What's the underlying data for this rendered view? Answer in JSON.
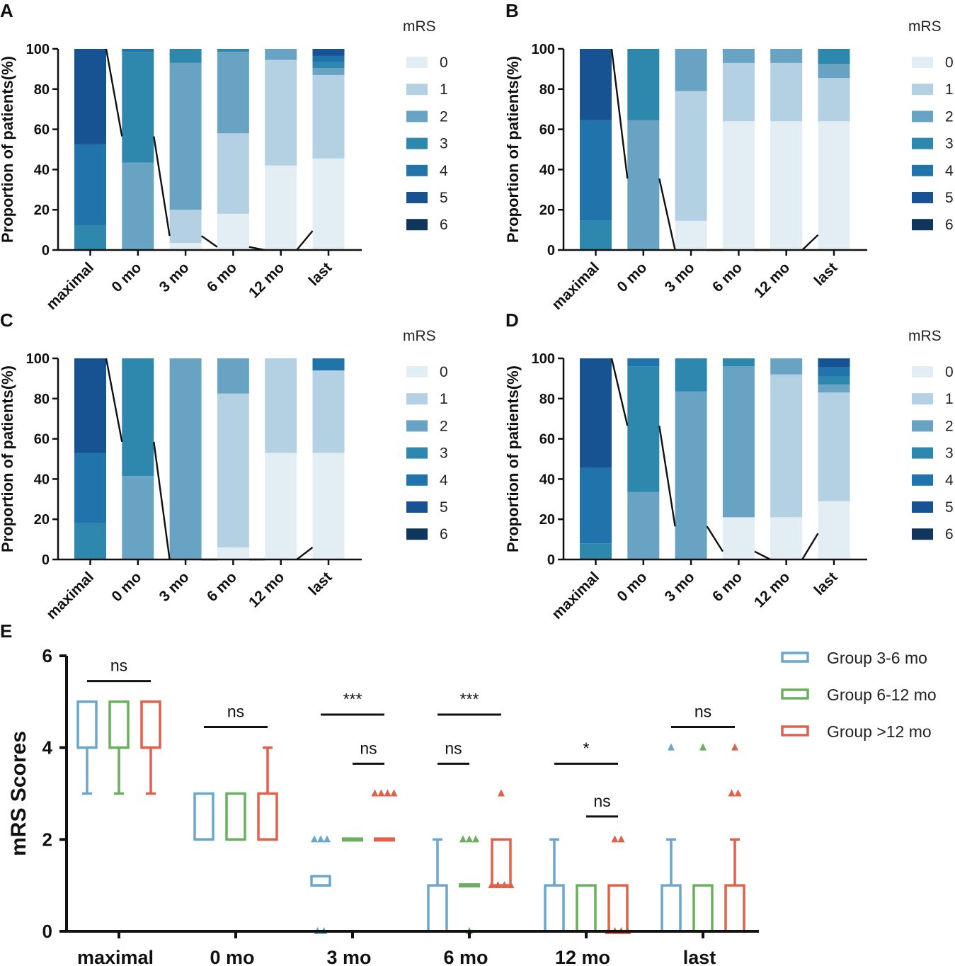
{
  "chart_data": {
    "type": "stacked-bar + box",
    "legend_title": "mRS",
    "legend_levels": [
      "0",
      "1",
      "2",
      "3",
      "4",
      "5",
      "6"
    ],
    "level_colors": [
      "#e3edf4",
      "#b3d1e3",
      "#69a3c3",
      "#2e88ad",
      "#2074ab",
      "#175293",
      "#11365e"
    ],
    "stacked_panels": [
      {
        "label": "A",
        "title": "",
        "ylabel": "Proportion of patients(%)",
        "ylim": [
          0,
          100
        ],
        "yticks": [
          "0",
          "20",
          "40",
          "60",
          "80",
          "100"
        ],
        "categories": [
          "maximal",
          "0 mo",
          "3 mo",
          "6 mo",
          "12 mo",
          "last"
        ],
        "stacks": [
          [
            0,
            0,
            0,
            12.5,
            40,
            47.5,
            0
          ],
          [
            0,
            0,
            43.5,
            55,
            1.5,
            0,
            0
          ],
          [
            3.5,
            16.5,
            73,
            7,
            0,
            0,
            0
          ],
          [
            18,
            40,
            40.5,
            1.5,
            0,
            0,
            0
          ],
          [
            42,
            52.5,
            5.5,
            0,
            0,
            0,
            0
          ],
          [
            45.5,
            41.5,
            3.5,
            3,
            3,
            3.5,
            0
          ]
        ]
      },
      {
        "label": "B",
        "title": "",
        "ylabel": "Proportion of patients(%)",
        "ylim": [
          0,
          100
        ],
        "yticks": [
          "0",
          "20",
          "40",
          "60",
          "80",
          "100"
        ],
        "categories": [
          "maximal",
          "0 mo",
          "3 mo",
          "6 mo",
          "12 mo",
          "last"
        ],
        "stacks": [
          [
            0,
            0,
            0,
            14.5,
            50,
            35.5,
            0
          ],
          [
            0,
            0,
            64.5,
            35.5,
            0,
            0,
            0
          ],
          [
            14.5,
            64.5,
            21,
            0,
            0,
            0,
            0
          ],
          [
            64,
            29,
            7,
            0,
            0,
            0,
            0
          ],
          [
            64,
            29,
            7,
            0,
            0,
            0,
            0
          ],
          [
            64,
            21.5,
            7,
            7.5,
            0,
            0,
            0
          ]
        ]
      },
      {
        "label": "C",
        "title": "",
        "ylabel": "Proportion of patients(%)",
        "ylim": [
          0,
          100
        ],
        "yticks": [
          "0",
          "20",
          "40",
          "60",
          "80",
          "100"
        ],
        "categories": [
          "maximal",
          "0 mo",
          "3 mo",
          "6 mo",
          "12 mo",
          "last"
        ],
        "stacks": [
          [
            0,
            0,
            0,
            18,
            35,
            47,
            0
          ],
          [
            0,
            0,
            41.5,
            58.5,
            0,
            0,
            0
          ],
          [
            0,
            0,
            100,
            0,
            0,
            0,
            0
          ],
          [
            6,
            76.5,
            17.5,
            0,
            0,
            0,
            0
          ],
          [
            53,
            47,
            0,
            0,
            0,
            0,
            0
          ],
          [
            53,
            41,
            0,
            0,
            6,
            0,
            0
          ]
        ]
      },
      {
        "label": "D",
        "title": "",
        "ylabel": "Proportion of patients(%)",
        "ylim": [
          0,
          100
        ],
        "yticks": [
          "0",
          "20",
          "40",
          "60",
          "80",
          "100"
        ],
        "categories": [
          "maximal",
          "0 mo",
          "3 mo",
          "6 mo",
          "12 mo",
          "last"
        ],
        "stacks": [
          [
            0,
            0,
            0,
            8,
            37.5,
            54.5,
            0
          ],
          [
            0,
            0,
            33.5,
            62.5,
            4,
            0,
            0
          ],
          [
            0,
            0,
            83.5,
            16.5,
            0,
            0,
            0
          ],
          [
            21,
            0,
            75,
            4,
            0,
            0,
            0
          ],
          [
            21,
            71,
            8,
            0,
            0,
            0,
            0
          ],
          [
            29,
            54,
            4,
            4,
            4.5,
            4.5,
            0
          ]
        ]
      }
    ],
    "box_panel": {
      "label": "E",
      "type": "box",
      "ylabel": "mRS Scores",
      "ylim": [
        0,
        6
      ],
      "yticks": [
        "0",
        "2",
        "4",
        "6"
      ],
      "categories": [
        "maximal",
        "0 mo",
        "3 mo",
        "6 mo",
        "12 mo",
        "last"
      ],
      "series": [
        {
          "name": "Group 3-6 mo",
          "color": "#6ba6cd",
          "boxes": [
            {
              "min": 3,
              "q1": 4,
              "median": 4,
              "q3": 5,
              "max": 5,
              "outliers": []
            },
            {
              "min": 2,
              "q1": 2,
              "median": 2,
              "q3": 3,
              "max": 3,
              "outliers": []
            },
            {
              "min": 1,
              "q1": 1,
              "median": 1,
              "q3": 1.2,
              "max": 1.2,
              "outliers": [
                2,
                2,
                2,
                0,
                0
              ]
            },
            {
              "min": 0,
              "q1": 0,
              "median": 0,
              "q3": 1,
              "max": 2,
              "outliers": []
            },
            {
              "min": 0,
              "q1": 0,
              "median": 0,
              "q3": 1,
              "max": 2,
              "outliers": []
            },
            {
              "min": 0,
              "q1": 0,
              "median": 0,
              "q3": 1,
              "max": 2,
              "outliers": [
                4
              ]
            }
          ]
        },
        {
          "name": "Group 6-12 mo",
          "color": "#6aaf5e",
          "boxes": [
            {
              "min": 3,
              "q1": 4,
              "median": 4,
              "q3": 5,
              "max": 5,
              "outliers": []
            },
            {
              "min": 2,
              "q1": 2,
              "median": 2,
              "q3": 3,
              "max": 3,
              "outliers": []
            },
            {
              "min": 2,
              "q1": 2,
              "median": 2,
              "q3": 2,
              "max": 2,
              "outliers": []
            },
            {
              "min": 1,
              "q1": 1,
              "median": 1,
              "q3": 1,
              "max": 1,
              "outliers": [
                2,
                2,
                2,
                0
              ]
            },
            {
              "min": 0,
              "q1": 0,
              "median": 0,
              "q3": 1,
              "max": 1,
              "outliers": []
            },
            {
              "min": 0,
              "q1": 0,
              "median": 0,
              "q3": 1,
              "max": 1,
              "outliers": [
                4
              ]
            }
          ]
        },
        {
          "name": "Group >12 mo",
          "color": "#e0604a",
          "boxes": [
            {
              "min": 3,
              "q1": 4,
              "median": 4,
              "q3": 5,
              "max": 5,
              "outliers": []
            },
            {
              "min": 2,
              "q1": 2,
              "median": 2,
              "q3": 3,
              "max": 4,
              "outliers": []
            },
            {
              "min": 2,
              "q1": 2,
              "median": 2,
              "q3": 2,
              "max": 2,
              "outliers": [
                3,
                3,
                3,
                3
              ]
            },
            {
              "min": 1,
              "q1": 1,
              "median": 1,
              "q3": 2,
              "max": 2,
              "outliers": [
                3,
                1,
                1,
                1,
                1
              ]
            },
            {
              "min": 0,
              "q1": 0,
              "median": 0,
              "q3": 1,
              "max": 1,
              "outliers": [
                2,
                2,
                0,
                0,
                0,
                0
              ]
            },
            {
              "min": 0,
              "q1": 0,
              "median": 0,
              "q3": 1,
              "max": 2,
              "outliers": [
                4,
                3,
                3
              ]
            }
          ]
        }
      ],
      "significance": [
        {
          "category": "maximal",
          "text": "ns",
          "level": 5.45,
          "span": "all"
        },
        {
          "category": "0 mo",
          "text": "ns",
          "level": 4.45,
          "span": "all"
        },
        {
          "category": "3 mo",
          "text": "***",
          "level": 4.72,
          "span": "all"
        },
        {
          "category": "3 mo",
          "text": "ns",
          "level": 3.65,
          "span": "right"
        },
        {
          "category": "6 mo",
          "text": "***",
          "level": 4.72,
          "span": "all"
        },
        {
          "category": "6 mo",
          "text": "ns",
          "level": 3.65,
          "span": "left"
        },
        {
          "category": "12 mo",
          "text": "*",
          "level": 3.65,
          "span": "all"
        },
        {
          "category": "12 mo",
          "text": "ns",
          "level": 2.5,
          "span": "right"
        },
        {
          "category": "last",
          "text": "ns",
          "level": 4.45,
          "span": "all"
        }
      ]
    }
  }
}
